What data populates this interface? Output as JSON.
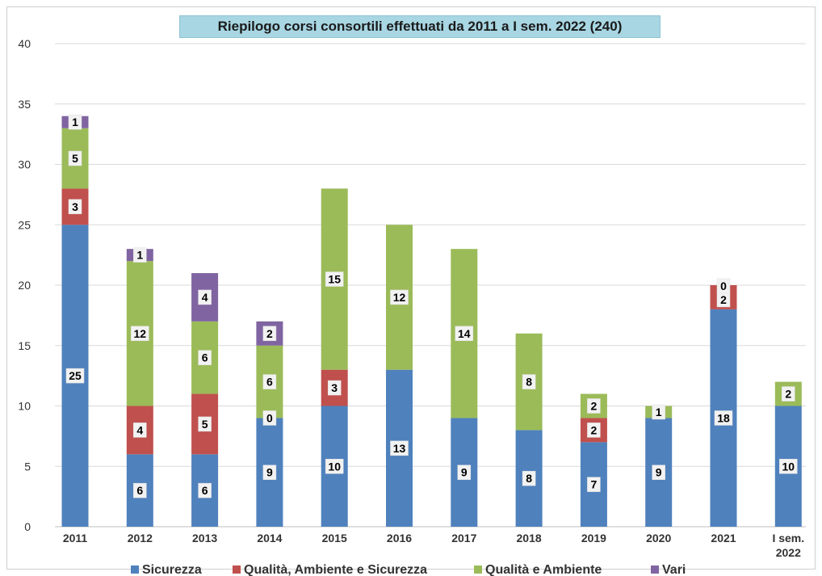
{
  "chart_data": {
    "type": "bar",
    "stacked": true,
    "title": "Riepilogo corsi consortili effettuati da 2011 a I sem. 2022 (240)",
    "categories": [
      "2011",
      "2012",
      "2013",
      "2014",
      "2015",
      "2016",
      "2017",
      "2018",
      "2019",
      "2020",
      "2021",
      "I sem. 2022"
    ],
    "ylim": [
      0,
      40
    ],
    "yticks": [
      0,
      5,
      10,
      15,
      20,
      25,
      30,
      35,
      40
    ],
    "grid": true,
    "legend_position": "bottom",
    "series": [
      {
        "name": "Sicurezza",
        "color": "#4f81bd",
        "values": [
          25,
          6,
          6,
          9,
          10,
          13,
          9,
          8,
          7,
          9,
          18,
          10
        ]
      },
      {
        "name": "Qualità, Ambiente e Sicurezza",
        "color": "#c0504d",
        "values": [
          3,
          4,
          5,
          0,
          3,
          0,
          0,
          0,
          2,
          0,
          2,
          0
        ]
      },
      {
        "name": "Qualità e Ambiente",
        "color": "#9bbb59",
        "values": [
          5,
          12,
          6,
          6,
          15,
          12,
          14,
          8,
          2,
          1,
          0,
          2
        ]
      },
      {
        "name": "Vari",
        "color": "#8064a2",
        "values": [
          1,
          1,
          4,
          2,
          0,
          0,
          0,
          0,
          0,
          0,
          0,
          0
        ]
      }
    ],
    "data_labels": [
      [
        "25",
        "3",
        "5",
        "1"
      ],
      [
        "6",
        "4",
        "12",
        "1"
      ],
      [
        "6",
        "5",
        "6",
        "4"
      ],
      [
        "9",
        "0",
        "6",
        "2"
      ],
      [
        "10",
        "3",
        "15",
        ""
      ],
      [
        "13",
        "",
        "12",
        ""
      ],
      [
        "9",
        "",
        "14",
        ""
      ],
      [
        "8",
        "",
        "8",
        ""
      ],
      [
        "7",
        "2",
        "2",
        ""
      ],
      [
        "9",
        "",
        "1",
        ""
      ],
      [
        "18",
        "2",
        "0",
        ""
      ],
      [
        "10",
        "",
        "2",
        ""
      ]
    ]
  }
}
